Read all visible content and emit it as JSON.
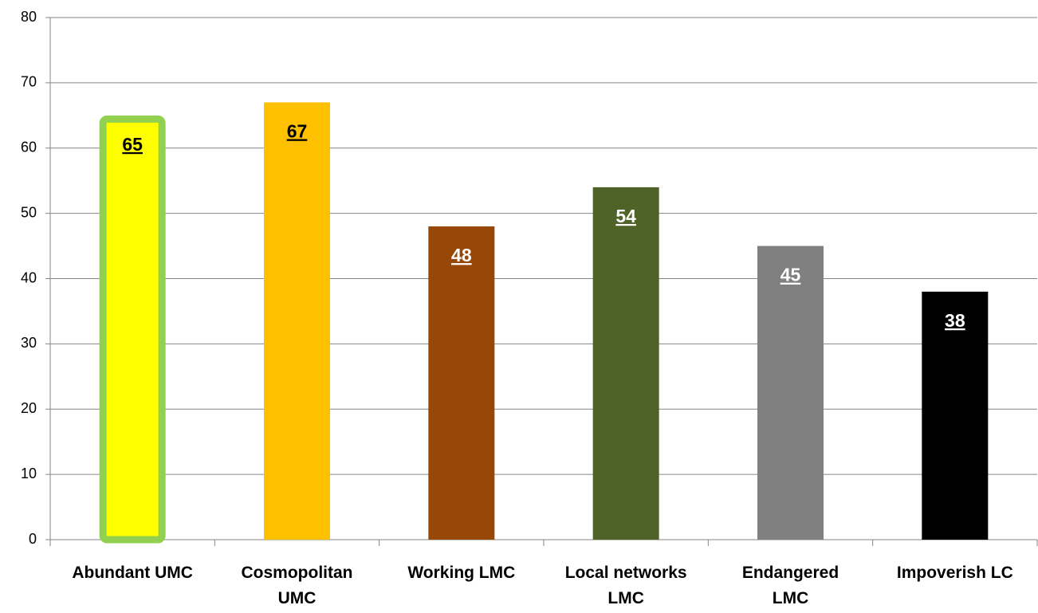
{
  "chart_data": {
    "type": "bar",
    "categories": [
      "Abundant UMC",
      "Cosmopolitan UMC",
      "Working LMC",
      "Local networks LMC",
      "Endangered LMC",
      "Impoverish LC"
    ],
    "values": [
      65,
      67,
      48,
      54,
      45,
      38
    ],
    "colors": [
      "#ffff00",
      "#ffc000",
      "#974706",
      "#4f6228",
      "#808080",
      "#000000"
    ],
    "edge_colors": [
      "#92d050",
      null,
      null,
      null,
      null,
      null
    ],
    "label_colors": [
      "#000000",
      "#000000",
      "#ffffff",
      "#ffffff",
      "#ffffff",
      "#ffffff"
    ],
    "ylim": [
      0,
      80
    ],
    "yticks": [
      0,
      10,
      20,
      30,
      40,
      50,
      60,
      70,
      80
    ],
    "grid": true
  }
}
